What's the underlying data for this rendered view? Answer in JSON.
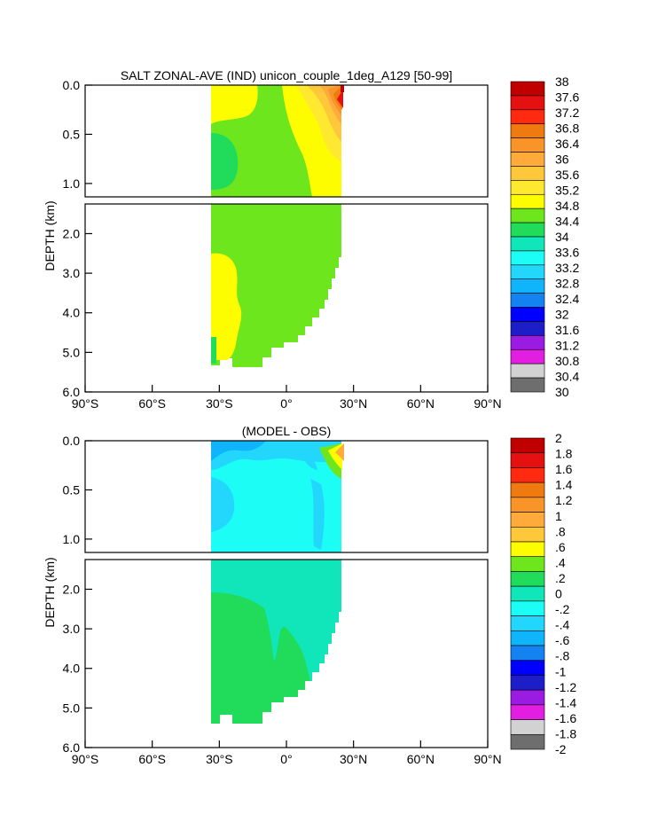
{
  "chart_data": [
    {
      "type": "heatmap",
      "title": "SALT ZONAL-AVE (IND) unicon_couple_1deg_A129 [50-99]",
      "ylabel": "DEPTH (km)",
      "xlim": [
        -90,
        90
      ],
      "ylim": [
        6.0,
        0.0
      ],
      "x_ticks": [
        "90°S",
        "60°S",
        "30°S",
        "0°",
        "30°N",
        "60°N",
        "90°N"
      ],
      "y_ticks_upper": [
        "0.0",
        "0.5",
        "1.0"
      ],
      "y_ticks_lower": [
        "2.0",
        "3.0",
        "4.0",
        "5.0",
        "6.0"
      ],
      "colorbar": {
        "labels": [
          "38",
          "37.6",
          "37.2",
          "36.8",
          "36.4",
          "36",
          "35.6",
          "35.2",
          "34.8",
          "34.4",
          "34",
          "33.6",
          "33.2",
          "32.8",
          "32.4",
          "32",
          "31.6",
          "31.2",
          "30.8",
          "30.4",
          "30"
        ],
        "colors": [
          "#c00000",
          "#e51010",
          "#ff2a10",
          "#ef7a10",
          "#f99428",
          "#ffab3c",
          "#ffc83a",
          "#ffe830",
          "#fdfd00",
          "#6ee61e",
          "#21dc5a",
          "#10e6b9",
          "#1cfdf6",
          "#22d6fc",
          "#10b4fa",
          "#1482f0",
          "#0000ff",
          "#1e1ec8",
          "#9a1be1",
          "#e21ee1",
          "#d2d2d2",
          "#6e6e6e"
        ]
      }
    },
    {
      "type": "heatmap",
      "title": "(MODEL - OBS)",
      "ylabel": "DEPTH (km)",
      "xlim": [
        -90,
        90
      ],
      "ylim": [
        6.0,
        0.0
      ],
      "x_ticks": [
        "90°S",
        "60°S",
        "30°S",
        "0°",
        "30°N",
        "60°N",
        "90°N"
      ],
      "y_ticks_upper": [
        "0.0",
        "0.5",
        "1.0"
      ],
      "y_ticks_lower": [
        "2.0",
        "3.0",
        "4.0",
        "5.0",
        "6.0"
      ],
      "colorbar": {
        "labels": [
          "2",
          "1.8",
          "1.6",
          "1.4",
          "1.2",
          "1",
          ".8",
          ".6",
          ".4",
          ".2",
          "0",
          "-.2",
          "-.4",
          "-.6",
          "-.8",
          "-1",
          "-1.2",
          "-1.4",
          "-1.6",
          "-1.8",
          "-2"
        ],
        "colors": [
          "#c00000",
          "#e51010",
          "#ff2a10",
          "#ef7a10",
          "#f99428",
          "#ffab3c",
          "#ffc83a",
          "#fdfd00",
          "#6ee61e",
          "#21dc5a",
          "#10e6b9",
          "#1cfdf6",
          "#22d6fc",
          "#10b4fa",
          "#1482f0",
          "#0000ff",
          "#1e1ec8",
          "#9a1be1",
          "#e21ee1",
          "#d2d2d2",
          "#6e6e6e"
        ]
      }
    }
  ]
}
